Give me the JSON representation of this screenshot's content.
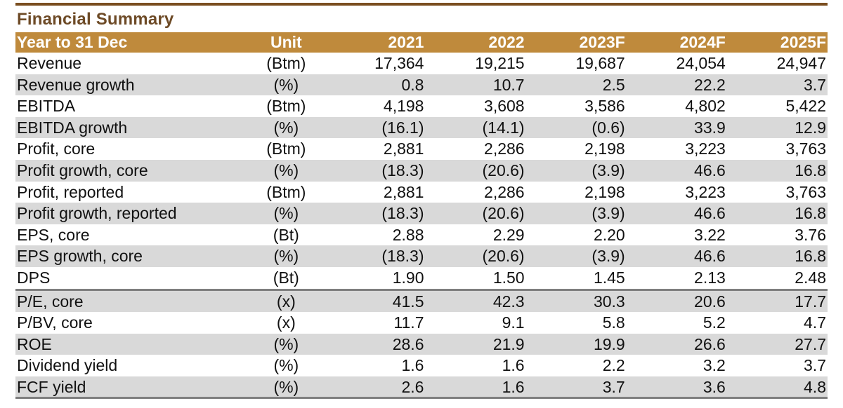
{
  "title": "Financial Summary",
  "colors": {
    "title_text": "#6d4a26",
    "header_bg": "#bf8a3c",
    "header_text": "#ffffff",
    "rule": "#7a4e20",
    "row_shade": "#d9d9d9"
  },
  "header": {
    "label": "Year to 31 Dec",
    "unit": "Unit",
    "years": [
      "2021",
      "2022",
      "2023F",
      "2024F",
      "2025F"
    ]
  },
  "rows": [
    {
      "label": "Revenue",
      "unit": "(Btm)",
      "values": [
        "17,364",
        "19,215",
        "19,687",
        "24,054",
        "24,947"
      ]
    },
    {
      "label": "Revenue growth",
      "unit": "(%)",
      "values": [
        "0.8",
        "10.7",
        "2.5",
        "22.2",
        "3.7"
      ]
    },
    {
      "label": "EBITDA",
      "unit": "(Btm)",
      "values": [
        "4,198",
        "3,608",
        "3,586",
        "4,802",
        "5,422"
      ]
    },
    {
      "label": "EBITDA growth",
      "unit": "(%)",
      "values": [
        "(16.1)",
        "(14.1)",
        "(0.6)",
        "33.9",
        "12.9"
      ]
    },
    {
      "label": "Profit, core",
      "unit": "(Btm)",
      "values": [
        "2,881",
        "2,286",
        "2,198",
        "3,223",
        "3,763"
      ]
    },
    {
      "label": "Profit growth, core",
      "unit": "(%)",
      "values": [
        "(18.3)",
        "(20.6)",
        "(3.9)",
        "46.6",
        "16.8"
      ]
    },
    {
      "label": "Profit, reported",
      "unit": "(Btm)",
      "values": [
        "2,881",
        "2,286",
        "2,198",
        "3,223",
        "3,763"
      ]
    },
    {
      "label": "Profit growth, reported",
      "unit": "(%)",
      "values": [
        "(18.3)",
        "(20.6)",
        "(3.9)",
        "46.6",
        "16.8"
      ]
    },
    {
      "label": "EPS, core",
      "unit": "(Bt)",
      "values": [
        "2.88",
        "2.29",
        "2.20",
        "3.22",
        "3.76"
      ]
    },
    {
      "label": "EPS growth, core",
      "unit": "(%)",
      "values": [
        "(18.3)",
        "(20.6)",
        "(3.9)",
        "46.6",
        "16.8"
      ]
    },
    {
      "label": "DPS",
      "unit": "(Bt)",
      "values": [
        "1.90",
        "1.50",
        "1.45",
        "2.13",
        "2.48"
      ]
    },
    {
      "label": "P/E, core",
      "unit": "(x)",
      "values": [
        "41.5",
        "42.3",
        "30.3",
        "20.6",
        "17.7"
      ]
    },
    {
      "label": "P/BV, core",
      "unit": "(x)",
      "values": [
        "11.7",
        "9.1",
        "5.8",
        "5.2",
        "4.7"
      ]
    },
    {
      "label": "ROE",
      "unit": "(%)",
      "values": [
        "28.6",
        "21.9",
        "19.9",
        "26.6",
        "27.7"
      ]
    },
    {
      "label": "Dividend yield",
      "unit": "(%)",
      "values": [
        "1.6",
        "1.6",
        "2.2",
        "3.2",
        "3.7"
      ]
    },
    {
      "label": "FCF yield",
      "unit": "(%)",
      "values": [
        "2.6",
        "1.6",
        "3.7",
        "3.6",
        "4.8"
      ]
    }
  ]
}
